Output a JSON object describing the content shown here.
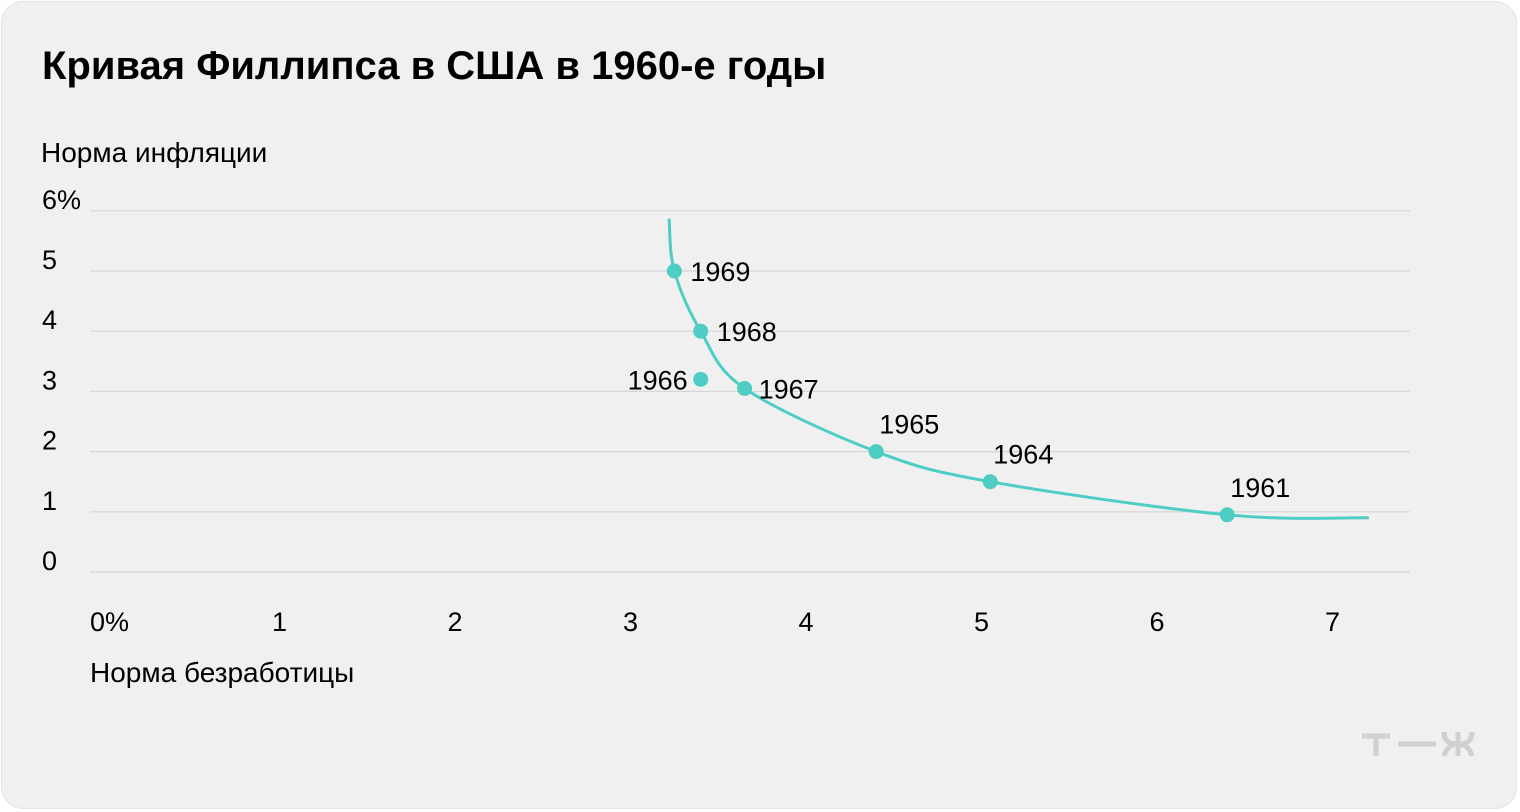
{
  "chart_data": {
    "type": "scatter",
    "title": "Кривая Филлипса в США в 1960-е годы",
    "ylabel": "Норма инфляции",
    "xlabel": "Норма безработицы",
    "x_ticks": [
      "0%",
      "1",
      "2",
      "3",
      "4",
      "5",
      "6",
      "7"
    ],
    "y_ticks": [
      "0",
      "1",
      "2",
      "3",
      "4",
      "5",
      "6%"
    ],
    "xlim": [
      0,
      7.5
    ],
    "ylim": [
      0,
      6
    ],
    "grid": true,
    "points": [
      {
        "label": "1961",
        "x": 6.4,
        "y": 0.95
      },
      {
        "label": "1964",
        "x": 5.05,
        "y": 1.5
      },
      {
        "label": "1965",
        "x": 4.4,
        "y": 2.0
      },
      {
        "label": "1966",
        "x": 3.4,
        "y": 3.2
      },
      {
        "label": "1967",
        "x": 3.65,
        "y": 3.05
      },
      {
        "label": "1968",
        "x": 3.4,
        "y": 4.0
      },
      {
        "label": "1969",
        "x": 3.25,
        "y": 5.0
      }
    ],
    "curve": [
      {
        "x": 3.22,
        "y": 5.85
      },
      {
        "x": 3.25,
        "y": 5.0
      },
      {
        "x": 3.4,
        "y": 4.0
      },
      {
        "x": 3.65,
        "y": 3.05
      },
      {
        "x": 4.4,
        "y": 2.0
      },
      {
        "x": 5.05,
        "y": 1.5
      },
      {
        "x": 6.4,
        "y": 0.95
      },
      {
        "x": 7.2,
        "y": 0.9
      }
    ],
    "colors": {
      "series": "#4ecdc4",
      "grid": "#d6d6d6",
      "text": "#000000",
      "logo": "#d0d0d0"
    }
  },
  "brand": {
    "logo_icon": "tzh-logo-icon"
  }
}
